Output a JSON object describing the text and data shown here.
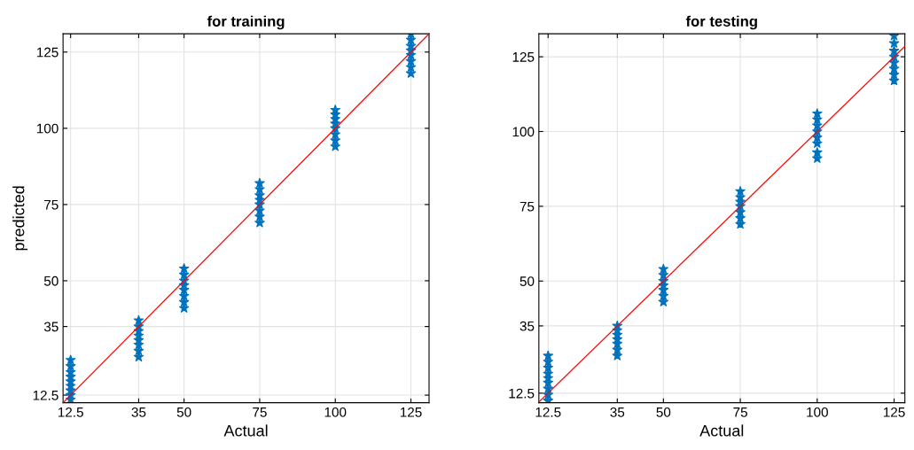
{
  "chart_data": [
    {
      "type": "scatter",
      "title": "for training",
      "xlabel": "Actual",
      "ylabel": "predicted",
      "xlim": [
        10,
        131
      ],
      "ylim": [
        10,
        131
      ],
      "xticks": [
        12.5,
        35,
        50,
        75,
        100,
        125
      ],
      "yticks": [
        12.5,
        35,
        50,
        75,
        100,
        125
      ],
      "grid": true,
      "marker": "star",
      "series": [
        {
          "color": "#0072bd",
          "x": [
            12.5,
            12.5,
            12.5,
            12.5,
            12.5,
            12.5,
            12.5,
            12.5,
            12.5,
            35,
            35,
            35,
            35,
            35,
            35,
            35,
            35,
            50,
            50,
            50,
            50,
            50,
            50,
            50,
            50,
            75,
            75,
            75,
            75,
            75,
            75,
            75,
            75,
            100,
            100,
            100,
            100,
            100,
            100,
            100,
            100,
            125,
            125,
            125,
            125,
            125,
            125,
            125,
            125
          ],
          "values": [
            11,
            12.5,
            14,
            15.5,
            17,
            18.5,
            20,
            22,
            24,
            25,
            27,
            29,
            30.5,
            32,
            33.5,
            35,
            37,
            41,
            43,
            45,
            47,
            48.5,
            50,
            52,
            54,
            69,
            71,
            73,
            75,
            76.5,
            78,
            80,
            82,
            94,
            96,
            98,
            100,
            101.5,
            103,
            104.5,
            106,
            118,
            120,
            122,
            124,
            125.5,
            127,
            129,
            131
          ]
        },
        {
          "type": "line",
          "color": "#ff0000",
          "marker": "none",
          "x": [
            10,
            131
          ],
          "values": [
            10,
            131
          ]
        }
      ]
    },
    {
      "type": "scatter",
      "title": "for testing",
      "xlabel": "Actual",
      "xlim": [
        9.5,
        128.5
      ],
      "ylim": [
        9.3,
        132.7
      ],
      "xticks": [
        12.5,
        35,
        50,
        75,
        100,
        125
      ],
      "yticks": [
        12.5,
        35,
        50,
        75,
        100,
        125
      ],
      "grid": true,
      "marker": "star",
      "series": [
        {
          "color": "#0072bd",
          "x": [
            12.5,
            12.5,
            12.5,
            12.5,
            12.5,
            12.5,
            12.5,
            12.5,
            12.5,
            35,
            35,
            35,
            35,
            35,
            35,
            35,
            50,
            50,
            50,
            50,
            50,
            50,
            50,
            75,
            75,
            75,
            75,
            75,
            75,
            75,
            100,
            100,
            100,
            100,
            100,
            100,
            100,
            100,
            125,
            125,
            125,
            125,
            125,
            125,
            125,
            125
          ],
          "values": [
            10,
            12,
            14,
            16,
            17.5,
            19,
            21,
            23,
            25,
            25,
            27,
            29,
            30.5,
            32,
            33.5,
            35,
            43,
            45,
            47,
            48.5,
            50,
            52,
            54,
            69,
            71,
            73,
            75,
            76.5,
            78,
            80,
            91,
            93,
            96,
            98,
            100,
            102,
            104,
            106,
            117,
            119,
            121,
            123,
            125,
            127,
            129.5,
            132
          ]
        },
        {
          "type": "line",
          "color": "#ff0000",
          "marker": "none",
          "x": [
            9.5,
            128.5
          ],
          "values": [
            9.5,
            128.5
          ]
        }
      ]
    }
  ]
}
